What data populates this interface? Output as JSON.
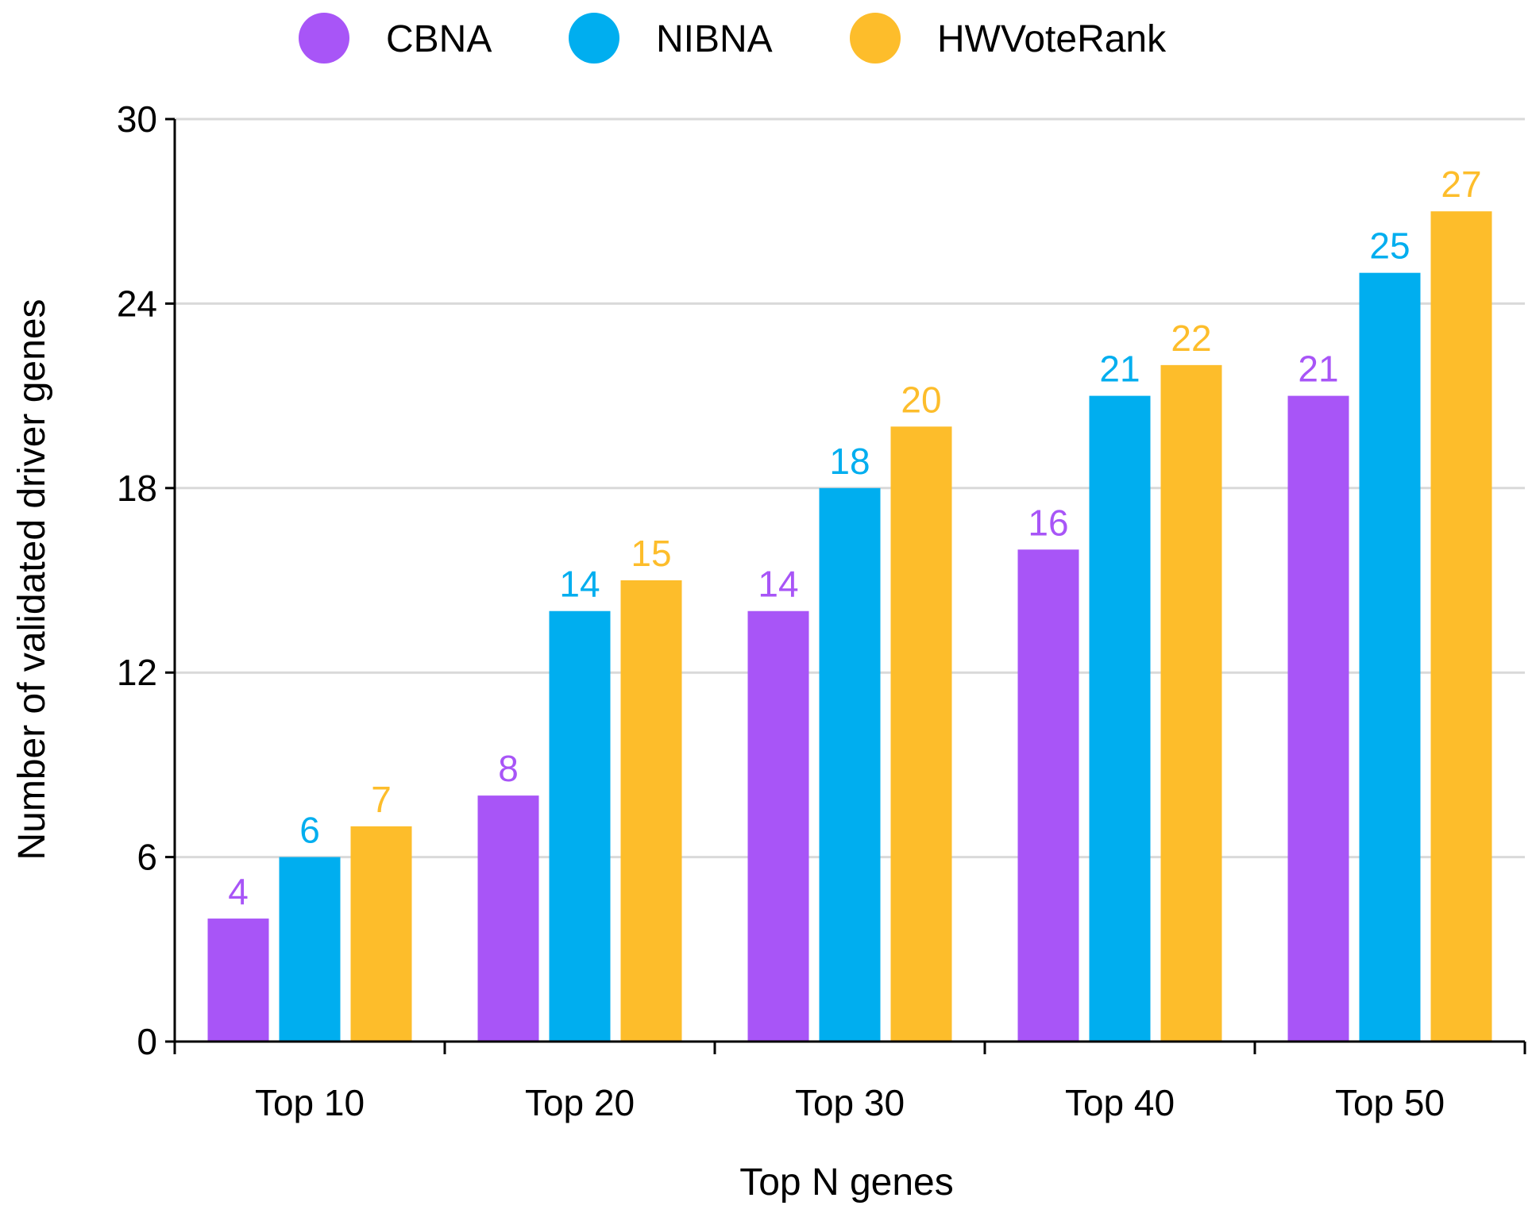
{
  "chart_data": {
    "type": "bar",
    "title": "",
    "xlabel": "Top N genes",
    "ylabel": "Number of validated driver genes",
    "categories": [
      "Top 10",
      "Top 20",
      "Top 30",
      "Top 40",
      "Top 50"
    ],
    "series": [
      {
        "name": "CBNA",
        "color": "#a855f7",
        "values": [
          4,
          8,
          14,
          16,
          21
        ]
      },
      {
        "name": "NIBNA",
        "color": "#00aeef",
        "values": [
          6,
          14,
          18,
          21,
          25
        ]
      },
      {
        "name": "HWVoteRank",
        "color": "#fdbd2b",
        "values": [
          7,
          15,
          20,
          22,
          27
        ]
      }
    ],
    "ylim": [
      0,
      30
    ],
    "yticks": [
      0,
      6,
      12,
      18,
      24,
      30
    ],
    "grid": true,
    "legend": "top-center",
    "data_labels": true
  },
  "colors": {
    "axis": "#000000",
    "grid": "#d9d9d9"
  }
}
